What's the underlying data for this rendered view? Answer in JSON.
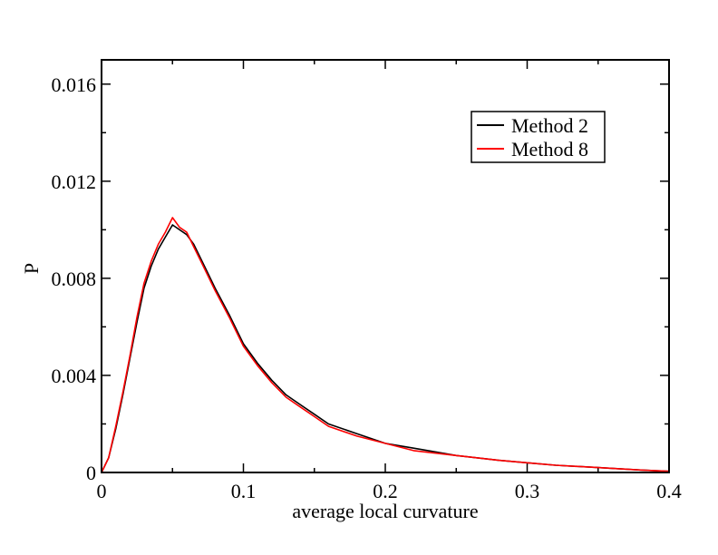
{
  "chart_data": {
    "type": "line",
    "title": "",
    "xlabel": "average local curvature",
    "ylabel": "P",
    "xlim": [
      0,
      0.4
    ],
    "ylim": [
      0,
      0.017
    ],
    "xticks": [
      0,
      0.1,
      0.2,
      0.3,
      0.4
    ],
    "xtick_labels": [
      "0",
      "0.1",
      "0.2",
      "0.3",
      "0.4"
    ],
    "yticks": [
      0,
      0.004,
      0.008,
      0.012,
      0.016
    ],
    "ytick_labels": [
      "0",
      "0.004",
      "0.008",
      "0.012",
      "0.016"
    ],
    "grid": false,
    "legend_position": "top-right",
    "series": [
      {
        "name": "Method 2",
        "color": "#000000",
        "x": [
          0,
          0.005,
          0.01,
          0.015,
          0.02,
          0.025,
          0.03,
          0.035,
          0.04,
          0.045,
          0.05,
          0.055,
          0.06,
          0.065,
          0.07,
          0.075,
          0.08,
          0.09,
          0.1,
          0.11,
          0.12,
          0.13,
          0.14,
          0.15,
          0.16,
          0.18,
          0.2,
          0.22,
          0.25,
          0.28,
          0.3,
          0.32,
          0.35,
          0.38,
          0.4
        ],
        "y": [
          0,
          0.0006,
          0.0018,
          0.0032,
          0.0047,
          0.0062,
          0.0076,
          0.0085,
          0.0092,
          0.0097,
          0.0102,
          0.01,
          0.0098,
          0.0094,
          0.0088,
          0.0082,
          0.0076,
          0.0065,
          0.0053,
          0.0045,
          0.0038,
          0.0032,
          0.0028,
          0.0024,
          0.002,
          0.0016,
          0.0012,
          0.001,
          0.0007,
          0.0005,
          0.0004,
          0.0003,
          0.0002,
          0.0001,
          5e-05
        ]
      },
      {
        "name": "Method 8",
        "color": "#ff0000",
        "x": [
          0,
          0.005,
          0.01,
          0.015,
          0.02,
          0.025,
          0.03,
          0.035,
          0.04,
          0.045,
          0.05,
          0.055,
          0.06,
          0.065,
          0.07,
          0.075,
          0.08,
          0.09,
          0.1,
          0.11,
          0.12,
          0.13,
          0.14,
          0.15,
          0.16,
          0.18,
          0.2,
          0.22,
          0.25,
          0.28,
          0.3,
          0.32,
          0.35,
          0.38,
          0.4
        ],
        "y": [
          0,
          0.0006,
          0.0019,
          0.0033,
          0.0048,
          0.0064,
          0.0078,
          0.0087,
          0.0094,
          0.0099,
          0.0105,
          0.0101,
          0.0099,
          0.0093,
          0.0087,
          0.0081,
          0.0075,
          0.0064,
          0.0052,
          0.0044,
          0.0037,
          0.0031,
          0.0027,
          0.0023,
          0.0019,
          0.0015,
          0.0012,
          0.0009,
          0.0007,
          0.0005,
          0.0004,
          0.0003,
          0.0002,
          0.0001,
          5e-05
        ]
      }
    ]
  }
}
